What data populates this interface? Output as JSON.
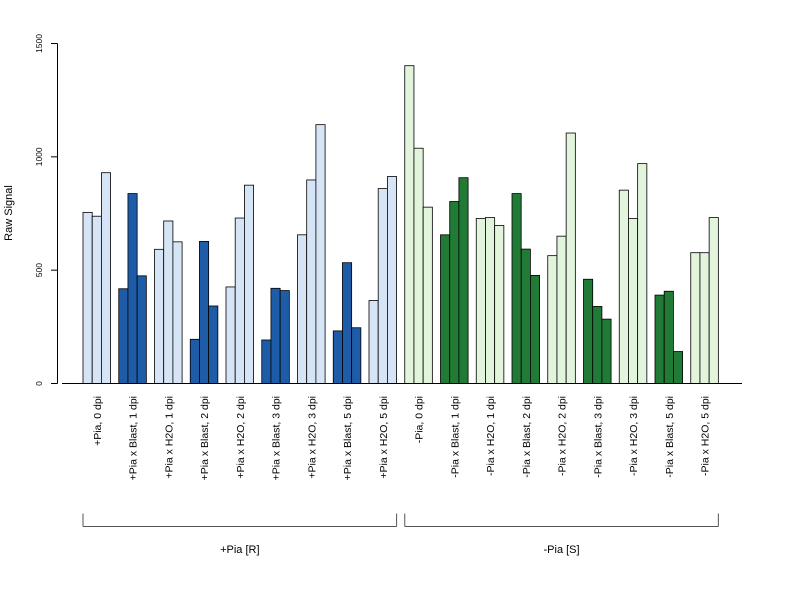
{
  "chart_data": {
    "type": "bar",
    "ylabel": "Raw Signal",
    "ylim": [
      0,
      1500
    ],
    "yticks": [
      0,
      500,
      1000,
      1500
    ],
    "grid": false,
    "bars_per_group": 3,
    "categories": [
      "+Pia, 0 dpi",
      "+Pia x Blast, 1 dpi",
      "+Pia x H2O, 1 dpi",
      "+Pia x Blast, 2 dpi",
      "+Pia x H2O, 2 dpi",
      "+Pia x Blast, 3 dpi",
      "+Pia x H2O, 3 dpi",
      "+Pia x Blast, 5 dpi",
      "+Pia x H2O, 5 dpi",
      "-Pia, 0 dpi",
      "-Pia x Blast, 1 dpi",
      "-Pia x H2O, 1 dpi",
      "-Pia x Blast, 2 dpi",
      "-Pia x H2O, 2 dpi",
      "-Pia x Blast, 3 dpi",
      "-Pia x H2O, 3 dpi",
      "-Pia x Blast, 5 dpi",
      "-Pia x H2O, 5 dpi"
    ],
    "values": [
      [
        755,
        738,
        930
      ],
      [
        418,
        838,
        475
      ],
      [
        592,
        717,
        625
      ],
      [
        195,
        627,
        342
      ],
      [
        426,
        730,
        875
      ],
      [
        192,
        420,
        410
      ],
      [
        656,
        898,
        1142
      ],
      [
        232,
        533,
        246
      ],
      [
        366,
        860,
        913
      ],
      [
        1402,
        1038,
        778
      ],
      [
        656,
        803,
        908
      ],
      [
        728,
        732,
        697
      ],
      [
        838,
        593,
        477
      ],
      [
        564,
        650,
        1105
      ],
      [
        460,
        340,
        284
      ],
      [
        853,
        728,
        970
      ],
      [
        390,
        407,
        141
      ],
      [
        577,
        577,
        732
      ]
    ],
    "bar_colors": [
      "#d6e5f6",
      "#1f5ca8",
      "#d6e5f6",
      "#1f5ca8",
      "#d6e5f6",
      "#1f5ca8",
      "#d6e5f6",
      "#1f5ca8",
      "#d6e5f6",
      "#e2f5dc",
      "#217a36",
      "#e2f5dc",
      "#217a36",
      "#e2f5dc",
      "#217a36",
      "#e2f5dc",
      "#217a36",
      "#e2f5dc"
    ],
    "groups": [
      {
        "label": "+Pia [R]",
        "start": 0,
        "end": 8
      },
      {
        "label": "-Pia [S]",
        "start": 9,
        "end": 17
      }
    ]
  }
}
